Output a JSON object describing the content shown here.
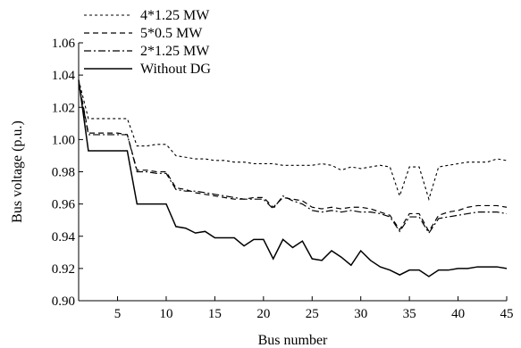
{
  "chart_data": {
    "type": "line",
    "title": "",
    "xlabel": "Bus number",
    "ylabel": "Bus voltage (p.u.)",
    "xlim": [
      1,
      45
    ],
    "ylim": [
      0.9,
      1.06
    ],
    "xticks": [
      5,
      10,
      15,
      20,
      25,
      30,
      35,
      40,
      45
    ],
    "xtick_labels": [
      "5",
      "10",
      "15",
      "20",
      "25",
      "30",
      "35",
      "40",
      "45"
    ],
    "yticks": [
      0.9,
      0.92,
      0.94,
      0.96,
      0.98,
      1.0,
      1.02,
      1.04,
      1.06
    ],
    "ytick_labels": [
      "0.90",
      "0.92",
      "0.94",
      "0.96",
      "0.98",
      "1.00",
      "1.02",
      "1.04",
      "1.06"
    ],
    "grid": false,
    "legend_position": "top-left",
    "x": [
      1,
      2,
      3,
      4,
      5,
      6,
      7,
      8,
      9,
      10,
      11,
      12,
      13,
      14,
      15,
      16,
      17,
      18,
      19,
      20,
      21,
      22,
      23,
      24,
      25,
      26,
      27,
      28,
      29,
      30,
      31,
      32,
      33,
      34,
      35,
      36,
      37,
      38,
      39,
      40,
      41,
      42,
      43,
      44,
      45
    ],
    "series": [
      {
        "name": "4*1.25 MW",
        "style": "dotted",
        "values": [
          1.037,
          1.013,
          1.013,
          1.013,
          1.013,
          1.013,
          0.996,
          0.996,
          0.997,
          0.997,
          0.99,
          0.989,
          0.988,
          0.988,
          0.987,
          0.987,
          0.986,
          0.986,
          0.985,
          0.985,
          0.985,
          0.984,
          0.984,
          0.984,
          0.984,
          0.985,
          0.984,
          0.981,
          0.983,
          0.982,
          0.983,
          0.984,
          0.983,
          0.965,
          0.983,
          0.983,
          0.963,
          0.983,
          0.984,
          0.985,
          0.986,
          0.986,
          0.986,
          0.988,
          0.987
        ]
      },
      {
        "name": "5*0.5 MW",
        "style": "dashed",
        "values": [
          1.036,
          1.004,
          1.004,
          1.004,
          1.004,
          1.003,
          0.981,
          0.981,
          0.98,
          0.98,
          0.97,
          0.969,
          0.967,
          0.966,
          0.965,
          0.964,
          0.963,
          0.963,
          0.964,
          0.964,
          0.958,
          0.964,
          0.963,
          0.962,
          0.958,
          0.957,
          0.958,
          0.957,
          0.958,
          0.958,
          0.957,
          0.955,
          0.953,
          0.944,
          0.954,
          0.954,
          0.943,
          0.953,
          0.955,
          0.956,
          0.958,
          0.959,
          0.959,
          0.959,
          0.958
        ]
      },
      {
        "name": "2*1.25 MW",
        "style": "dash-dot",
        "values": [
          1.035,
          1.003,
          1.003,
          1.003,
          1.003,
          1.003,
          0.98,
          0.98,
          0.979,
          0.979,
          0.969,
          0.968,
          0.968,
          0.967,
          0.966,
          0.965,
          0.964,
          0.963,
          0.963,
          0.963,
          0.957,
          0.965,
          0.962,
          0.96,
          0.956,
          0.955,
          0.956,
          0.955,
          0.956,
          0.955,
          0.955,
          0.954,
          0.952,
          0.943,
          0.952,
          0.952,
          0.942,
          0.951,
          0.952,
          0.953,
          0.954,
          0.955,
          0.955,
          0.955,
          0.954
        ]
      },
      {
        "name": "Without DG",
        "style": "solid",
        "values": [
          1.037,
          0.993,
          0.993,
          0.993,
          0.993,
          0.993,
          0.96,
          0.96,
          0.96,
          0.96,
          0.946,
          0.945,
          0.942,
          0.943,
          0.939,
          0.939,
          0.939,
          0.934,
          0.938,
          0.938,
          0.926,
          0.938,
          0.933,
          0.937,
          0.926,
          0.925,
          0.931,
          0.927,
          0.922,
          0.931,
          0.925,
          0.921,
          0.919,
          0.916,
          0.919,
          0.919,
          0.915,
          0.919,
          0.919,
          0.92,
          0.92,
          0.921,
          0.921,
          0.921,
          0.92
        ]
      }
    ]
  }
}
